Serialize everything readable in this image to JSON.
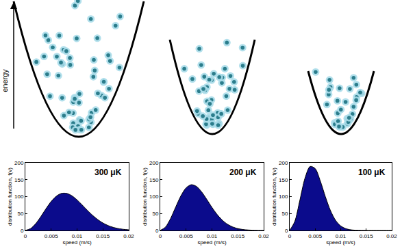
{
  "diagram": {
    "axis_label": "energy"
  },
  "chart_data": [
    {
      "type": "area",
      "title": "300 μK",
      "x_label": "speed (m/s)",
      "y_label": "distribution function, f(v)",
      "x": [
        0,
        0.001,
        0.002,
        0.003,
        0.004,
        0.005,
        0.006,
        0.007,
        0.008,
        0.009,
        0.01,
        0.011,
        0.012,
        0.013,
        0.014,
        0.015,
        0.016,
        0.017,
        0.018,
        0.019,
        0.02
      ],
      "values": [
        0,
        5.3,
        19.9,
        41.0,
        64.4,
        85.8,
        101.5,
        109.7,
        109.7,
        102.7,
        90.4,
        75.3,
        59.5,
        44.8,
        32.2,
        22.0,
        14.5,
        9.1,
        5.5,
        3.2,
        1.7
      ],
      "color": "#0b0b8c",
      "xlim": [
        0,
        0.02
      ],
      "ylim": [
        0,
        200
      ],
      "xticks": [
        0,
        0.005,
        0.01,
        0.015,
        0.02
      ],
      "yticks": [
        0,
        50,
        100,
        150,
        200
      ],
      "grid": false
    },
    {
      "type": "area",
      "title": "200 μK",
      "x_label": "speed (m/s)",
      "y_label": "distribution function, f(v)",
      "x": [
        0,
        0.001,
        0.002,
        0.003,
        0.004,
        0.005,
        0.006,
        0.007,
        0.008,
        0.009,
        0.01,
        0.011,
        0.012,
        0.013,
        0.014,
        0.015,
        0.016,
        0.017,
        0.018,
        0.019,
        0.02
      ],
      "values": [
        0,
        9.6,
        35.3,
        69.6,
        102.6,
        126.1,
        135.5,
        130.4,
        114.2,
        91.8,
        68.3,
        47.2,
        30.4,
        18.3,
        10.4,
        5.5,
        2.7,
        1.3,
        0.6,
        0.2,
        0.1
      ],
      "color": "#0b0b8c",
      "xlim": [
        0,
        0.02
      ],
      "ylim": [
        0,
        200
      ],
      "xticks": [
        0,
        0.005,
        0.01,
        0.015,
        0.02
      ],
      "yticks": [
        0,
        50,
        100,
        150,
        200
      ],
      "grid": false
    },
    {
      "type": "area",
      "title": "100 μK",
      "x_label": "speed (m/s)",
      "y_label": "distribution function, f(v)",
      "x": [
        0,
        0.001,
        0.002,
        0.003,
        0.004,
        0.005,
        0.006,
        0.007,
        0.008,
        0.009,
        0.01,
        0.011,
        0.012,
        0.013,
        0.014,
        0.015,
        0.016,
        0.017,
        0.018,
        0.019,
        0.02
      ],
      "values": [
        0,
        26.4,
        89.8,
        154.8,
        189.5,
        183.2,
        146.7,
        99.8,
        58.6,
        29.9,
        13.4,
        5.3,
        1.8,
        0.6,
        0.2,
        0,
        0,
        0,
        0,
        0,
        0
      ],
      "color": "#0b0b8c",
      "xlim": [
        0,
        0.02
      ],
      "ylim": [
        0,
        200
      ],
      "xticks": [
        0,
        0.005,
        0.01,
        0.015,
        0.02
      ],
      "yticks": [
        0,
        50,
        100,
        150,
        200
      ],
      "grid": false
    }
  ]
}
